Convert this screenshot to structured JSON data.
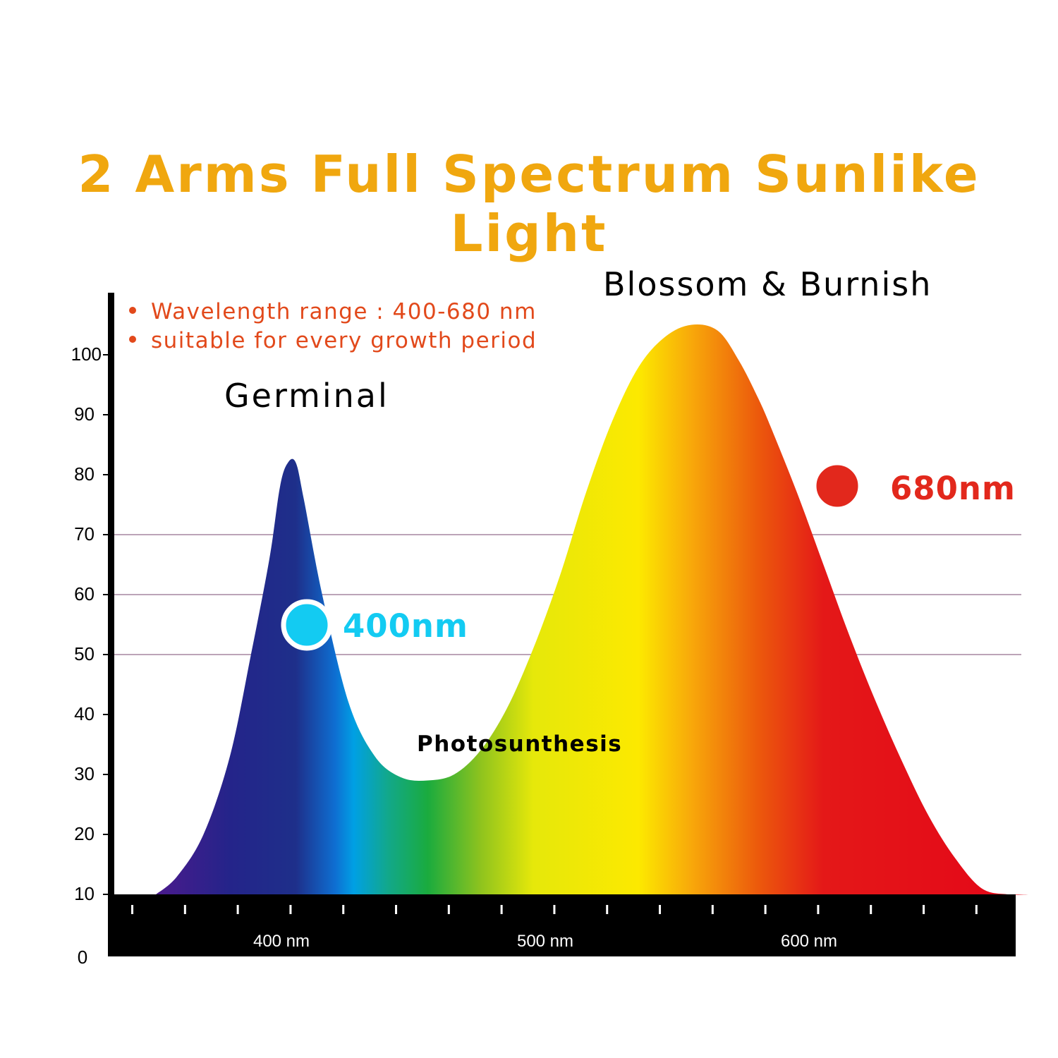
{
  "title": "2 Arms Full Spectrum Sunlike Light",
  "colors": {
    "title": "#f0a70f",
    "bullet_text": "#e2491b",
    "marker_blue": "#13cbf2",
    "marker_red": "#e2281c",
    "axis": "#000000",
    "gridline": "#7a4a72"
  },
  "chart_data": {
    "type": "area",
    "title": "2 Arms Full Spectrum Sunlike Light",
    "xlabel": "",
    "ylabel": "",
    "xlim": [
      352,
      690
    ],
    "ylim": [
      0,
      110
    ],
    "y_ticks": [
      0,
      10,
      20,
      30,
      40,
      50,
      60,
      70,
      80,
      90,
      100
    ],
    "x_major_ticks": [
      400,
      500,
      600
    ],
    "x_tick_labels": [
      "400 nm",
      "500 nm",
      "600 nm"
    ],
    "x_minor_step": 20,
    "gridlines_y": [
      50,
      60,
      70
    ],
    "series": [
      {
        "x": [
          357,
          365,
          375,
          385,
          393,
          400,
          404,
          407,
          410,
          413,
          420,
          430,
          440,
          450,
          460,
          470,
          480,
          490,
          500,
          510,
          520,
          530,
          540,
          550,
          560,
          570,
          578,
          585,
          590,
          600,
          610,
          620,
          630,
          640,
          650,
          660,
          670,
          680,
          688
        ],
        "y": [
          10,
          13,
          20,
          33,
          50,
          66,
          78,
          82,
          82,
          76,
          60,
          42,
          33,
          29.5,
          29,
          30,
          34,
          41,
          51,
          63,
          77,
          89,
          98,
          103,
          105,
          104,
          99,
          93,
          88,
          77,
          65,
          53,
          42,
          32,
          23,
          16,
          11,
          10,
          10
        ]
      }
    ],
    "annotations": {
      "bullets": [
        "Wavelength range : 400-680 nm",
        "suitable for every growth period"
      ],
      "germinal": "Germinal",
      "blossom": "Blossom & Burnish",
      "photosynthesis": "Photosunthesis",
      "marker_400": {
        "label": "400nm",
        "x": 415,
        "y": 55
      },
      "marker_680": {
        "label": "680nm",
        "x": 622,
        "y": 78
      }
    },
    "spectrum_gradient": [
      {
        "x": 357,
        "color": "#4a1a8c"
      },
      {
        "x": 385,
        "color": "#24248a"
      },
      {
        "x": 410,
        "color": "#1e2f8a"
      },
      {
        "x": 425,
        "color": "#0e6fd2"
      },
      {
        "x": 432,
        "color": "#00a0e4"
      },
      {
        "x": 445,
        "color": "#12a88a"
      },
      {
        "x": 460,
        "color": "#1aab3e"
      },
      {
        "x": 480,
        "color": "#8ec31e"
      },
      {
        "x": 500,
        "color": "#e6e80a"
      },
      {
        "x": 540,
        "color": "#fce900"
      },
      {
        "x": 560,
        "color": "#f8a80a"
      },
      {
        "x": 585,
        "color": "#ec5a0c"
      },
      {
        "x": 610,
        "color": "#e41818"
      },
      {
        "x": 688,
        "color": "#e40618"
      }
    ],
    "grid": true,
    "legend": "none"
  }
}
